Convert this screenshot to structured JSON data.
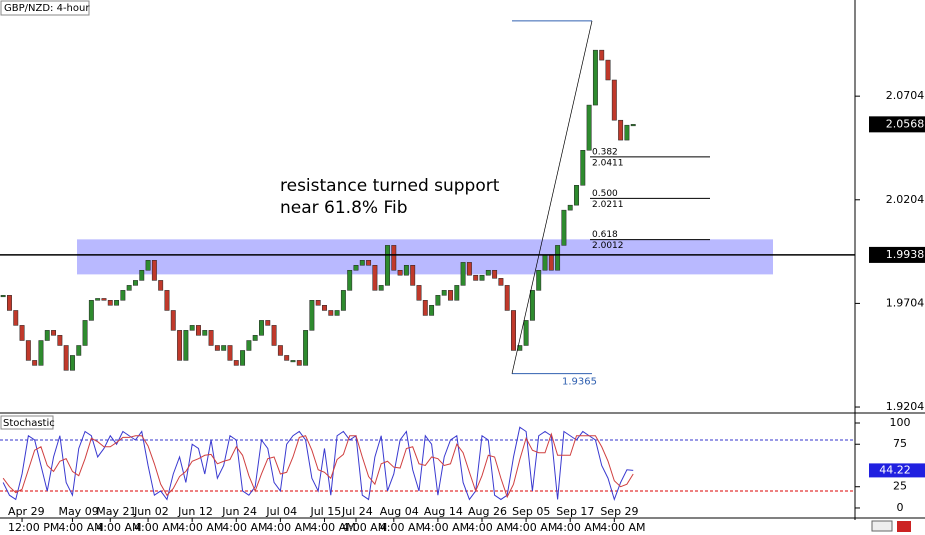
{
  "chart_data": {
    "type": "candlestick",
    "title": "GBP/NZD: 4-hour",
    "color_up": "#2e8b2e",
    "color_down": "#c0392b",
    "closes": [
      1.9743,
      1.967,
      1.9598,
      1.9525,
      1.9429,
      1.9405,
      1.9525,
      1.9574,
      1.955,
      1.9501,
      1.9381,
      1.9453,
      1.9501,
      1.9622,
      1.9719,
      1.9728,
      1.9719,
      1.9695,
      1.9719,
      1.9767,
      1.9791,
      1.9815,
      1.9864,
      1.9912,
      1.9815,
      1.9767,
      1.967,
      1.9574,
      1.9429,
      1.9574,
      1.9598,
      1.955,
      1.9574,
      1.9501,
      1.9477,
      1.9501,
      1.9429,
      1.9405,
      1.9477,
      1.9525,
      1.955,
      1.9622,
      1.9598,
      1.9501,
      1.9453,
      1.9429,
      1.9429,
      1.9405,
      1.9574,
      1.9719,
      1.9695,
      1.967,
      1.9646,
      1.967,
      1.9767,
      1.9864,
      1.9888,
      1.9912,
      1.9888,
      1.9767,
      1.9791,
      1.9984,
      1.9864,
      1.984,
      1.9888,
      1.9791,
      1.9719,
      1.9646,
      1.9695,
      1.9743,
      1.9767,
      1.9719,
      1.9791,
      1.9902,
      1.984,
      1.9815,
      1.984,
      1.9864,
      1.9825,
      1.9791,
      1.967,
      1.9477,
      1.9501,
      1.9622,
      1.9767,
      1.9864,
      1.9937,
      1.9864,
      1.9984,
      2.0154,
      2.0178,
      2.0274,
      2.0443,
      2.0661,
      2.0926,
      2.0878,
      2.0782,
      2.0588,
      2.0492,
      2.0564,
      2.0568
    ],
    "xlim": [
      -0.5,
      135.2
    ],
    "ylim": [
      1.918,
      2.1168
    ],
    "yticks": [
      2.0704,
      2.0204,
      1.9704,
      1.9204
    ],
    "xticks": [
      {
        "value": 3,
        "label": "Apr 29"
      },
      {
        "value": 11,
        "label": "May 09"
      },
      {
        "value": 17,
        "label": "May 21"
      },
      {
        "value": 23,
        "label": "Jun 02"
      },
      {
        "value": 30,
        "label": "Jun 12"
      },
      {
        "value": 37,
        "label": "Jun 24"
      },
      {
        "value": 44,
        "label": "Jul 04"
      },
      {
        "value": 51,
        "label": "Jul 15"
      },
      {
        "value": 56,
        "label": "Jul 24"
      },
      {
        "value": 62,
        "label": "Aug 04"
      },
      {
        "value": 69,
        "label": "Aug 14"
      },
      {
        "value": 76,
        "label": "Aug 26"
      },
      {
        "value": 83,
        "label": "Sep 05"
      },
      {
        "value": 90,
        "label": "Sep 17"
      },
      {
        "value": 97,
        "label": "Sep 29"
      }
    ],
    "xtick_times": [
      "12:00 PM",
      "4:00 AM",
      "4:00 AM",
      "4:00 AM",
      "4:00 AM",
      "4:00 AM",
      "4:00 AM",
      "4:00 AM",
      "4:00 AM",
      "4:00 AM",
      "4:00 AM",
      "4:00 AM",
      "4:00 AM",
      "4:00 AM",
      "4:00 AM"
    ],
    "last_price": 2.0568,
    "level_line": 1.9938,
    "zone": [
      2.0013,
      1.9844
    ],
    "zone_color": "#8080ff",
    "annotation": [
      "resistance turned support",
      "near 61.8% Fib"
    ],
    "fib_high": 2.1067,
    "fib_low": 1.9365,
    "fib_levels": [
      {
        "ratio": "0.382",
        "price": 2.0411
      },
      {
        "ratio": "0.500",
        "price": 2.0211
      },
      {
        "ratio": "0.618",
        "price": 2.0012
      }
    ],
    "stochastic": {
      "title": "Stochastic",
      "ylim": [
        -11.8,
        109.4
      ],
      "yticks": [
        100,
        75,
        25,
        0
      ],
      "levels": [
        80,
        20
      ],
      "last_value": 44.22,
      "series": [
        {
          "color": "#3a3ad0",
          "values": [
            30,
            15,
            10,
            40,
            85,
            80,
            50,
            20,
            60,
            85,
            30,
            15,
            70,
            90,
            85,
            60,
            70,
            85,
            75,
            90,
            85,
            80,
            90,
            50,
            15,
            20,
            10,
            40,
            60,
            30,
            75,
            70,
            40,
            80,
            35,
            50,
            85,
            80,
            20,
            15,
            25,
            80,
            70,
            30,
            20,
            75,
            85,
            90,
            80,
            35,
            20,
            70,
            15,
            85,
            90,
            80,
            85,
            15,
            10,
            60,
            85,
            20,
            40,
            80,
            90,
            45,
            20,
            85,
            75,
            15,
            60,
            80,
            85,
            30,
            10,
            20,
            85,
            80,
            15,
            10,
            15,
            60,
            95,
            90,
            20,
            85,
            90,
            85,
            10,
            90,
            85,
            80,
            90,
            85,
            80,
            50,
            35,
            10,
            30,
            45,
            44.22
          ]
        },
        {
          "color": "#d04040",
          "values": [
            35,
            25,
            18,
            22,
            45,
            68,
            72,
            50,
            43,
            55,
            58,
            43,
            38,
            58,
            82,
            78,
            72,
            72,
            77,
            83,
            83,
            85,
            85,
            73,
            52,
            28,
            15,
            23,
            37,
            43,
            55,
            58,
            62,
            63,
            52,
            55,
            57,
            72,
            62,
            38,
            20,
            40,
            58,
            60,
            40,
            42,
            60,
            83,
            85,
            68,
            45,
            42,
            35,
            57,
            63,
            85,
            85,
            60,
            37,
            28,
            52,
            55,
            48,
            47,
            70,
            72,
            52,
            50,
            60,
            58,
            50,
            52,
            75,
            65,
            42,
            20,
            38,
            62,
            60,
            35,
            13,
            28,
            57,
            82,
            68,
            65,
            65,
            87,
            62,
            62,
            62,
            85,
            85,
            85,
            85,
            72,
            55,
            32,
            25,
            28,
            40
          ]
        }
      ]
    }
  }
}
